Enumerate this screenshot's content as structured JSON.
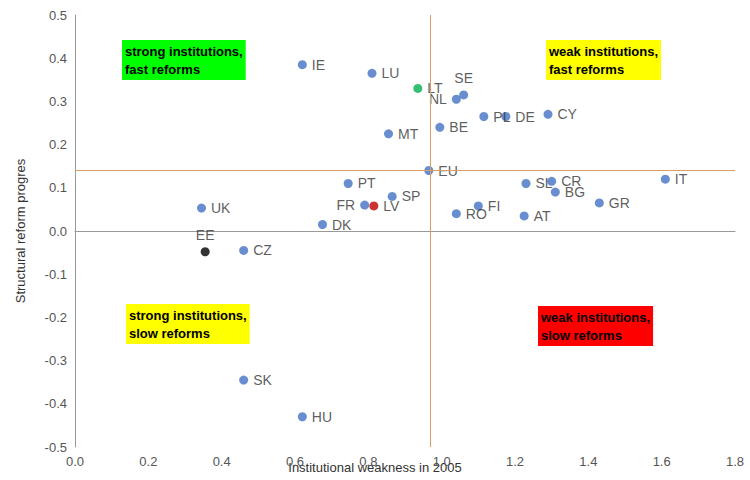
{
  "chart_data": {
    "type": "scatter",
    "x_label": "Institutional weakness in 2005",
    "y_label": "Structural reform progres",
    "labels": [
      "IE",
      "LU",
      "LT",
      "SE",
      "NL",
      "PL",
      "DE",
      "CY",
      "MT",
      "BE",
      "EU",
      "PT",
      "IT",
      "SL",
      "CR",
      "BG",
      "GR",
      "AT",
      "FI",
      "RO",
      "SP",
      "FR",
      "LV",
      "DK",
      "UK",
      "EE",
      "CZ",
      "SK",
      "HU"
    ],
    "x": [
      0.62,
      0.81,
      0.935,
      1.06,
      1.04,
      1.115,
      1.175,
      1.29,
      0.855,
      0.995,
      0.965,
      0.745,
      1.61,
      1.23,
      1.3,
      1.31,
      1.43,
      1.225,
      1.1,
      1.04,
      0.865,
      0.79,
      0.815,
      0.675,
      0.345,
      0.355,
      0.46,
      0.46,
      0.62
    ],
    "values": [
      0.385,
      0.365,
      0.33,
      0.315,
      0.305,
      0.265,
      0.265,
      0.27,
      0.225,
      0.24,
      0.14,
      0.11,
      0.12,
      0.11,
      0.115,
      0.09,
      0.065,
      0.035,
      0.058,
      0.04,
      0.08,
      0.06,
      0.058,
      0.015,
      0.053,
      -0.048,
      -0.045,
      -0.345,
      -0.43
    ],
    "colors": [
      "#4472c4",
      "#4472c4",
      "#00b050",
      "#4472c4",
      "#4472c4",
      "#4472c4",
      "#4472c4",
      "#4472c4",
      "#4472c4",
      "#4472c4",
      "#4472c4",
      "#4472c4",
      "#4472c4",
      "#4472c4",
      "#4472c4",
      "#4472c4",
      "#4472c4",
      "#4472c4",
      "#4472c4",
      "#4472c4",
      "#4472c4",
      "#4472c4",
      "#c00000",
      "#4472c4",
      "#4472c4",
      "#000000",
      "#4472c4",
      "#4472c4",
      "#4472c4"
    ],
    "reference_lines": {
      "x": 0.97,
      "y": 0.14
    },
    "annotations": [
      {
        "text": "strong institutions,\nfast reforms",
        "color": "#00ff00"
      },
      {
        "text": "weak institutions,\nfast reforms",
        "color": "#ffff00"
      },
      {
        "text": "strong institutions,\nslow reforms",
        "color": "#ffff00"
      },
      {
        "text": "weak institutions,\nslow reforms",
        "color": "#ff0000"
      }
    ],
    "xlim": [
      0,
      1.8
    ],
    "xticks": [
      {
        "value": 0,
        "label": "0.0"
      },
      0.2,
      0.4,
      0.6,
      0.8,
      {
        "value": 1,
        "label": "1.0"
      },
      1.2,
      1.4,
      1.6,
      1.8
    ],
    "ylim": [
      -0.5,
      0.5
    ],
    "yticks": [
      -0.5,
      -0.4,
      -0.3,
      -0.2,
      -0.1,
      {
        "value": 0,
        "label": "0.0"
      },
      0.1,
      0.2,
      0.3,
      0.4,
      0.5
    ],
    "grid": false
  }
}
